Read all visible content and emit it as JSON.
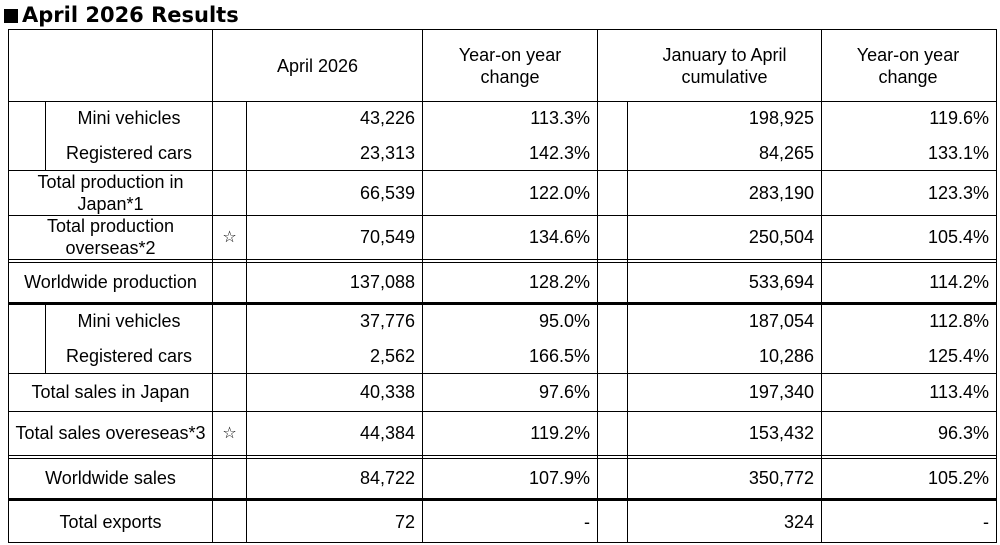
{
  "title": "April 2026 Results",
  "header": {
    "col1": "April 2026",
    "col2": "Year-on year change",
    "col3": "January to April cumulative",
    "col4": "Year-on year change"
  },
  "rows": [
    {
      "label": "Mini vehicles",
      "star": "",
      "m": "43,226",
      "m_yoy": "113.3%",
      "c": "198,925",
      "c_yoy": "119.6%"
    },
    {
      "label": "Registered cars",
      "star": "",
      "m": "23,313",
      "m_yoy": "142.3%",
      "c": "84,265",
      "c_yoy": "133.1%"
    },
    {
      "label": "Total production in Japan*1",
      "star": "",
      "m": "66,539",
      "m_yoy": "122.0%",
      "c": "283,190",
      "c_yoy": "123.3%"
    },
    {
      "label": "Total production overseas*2",
      "star": "☆",
      "m": "70,549",
      "m_yoy": "134.6%",
      "c": "250,504",
      "c_yoy": "105.4%"
    },
    {
      "label": "Worldwide production",
      "star": "",
      "m": "137,088",
      "m_yoy": "128.2%",
      "c": "533,694",
      "c_yoy": "114.2%"
    },
    {
      "label": "Mini vehicles",
      "star": "",
      "m": "37,776",
      "m_yoy": "95.0%",
      "c": "187,054",
      "c_yoy": "112.8%"
    },
    {
      "label": "Registered cars",
      "star": "",
      "m": "2,562",
      "m_yoy": "166.5%",
      "c": "10,286",
      "c_yoy": "125.4%"
    },
    {
      "label": "Total sales in Japan",
      "star": "",
      "m": "40,338",
      "m_yoy": "97.6%",
      "c": "197,340",
      "c_yoy": "113.4%"
    },
    {
      "label": "Total sales overeseas*3",
      "star": "☆",
      "m": "44,384",
      "m_yoy": "119.2%",
      "c": "153,432",
      "c_yoy": "96.3%"
    },
    {
      "label": "Worldwide sales",
      "star": "",
      "m": "84,722",
      "m_yoy": "107.9%",
      "c": "350,772",
      "c_yoy": "105.2%"
    },
    {
      "label": "Total exports",
      "star": "",
      "m": "72",
      "m_yoy": "-",
      "c": "324",
      "c_yoy": "-"
    }
  ]
}
